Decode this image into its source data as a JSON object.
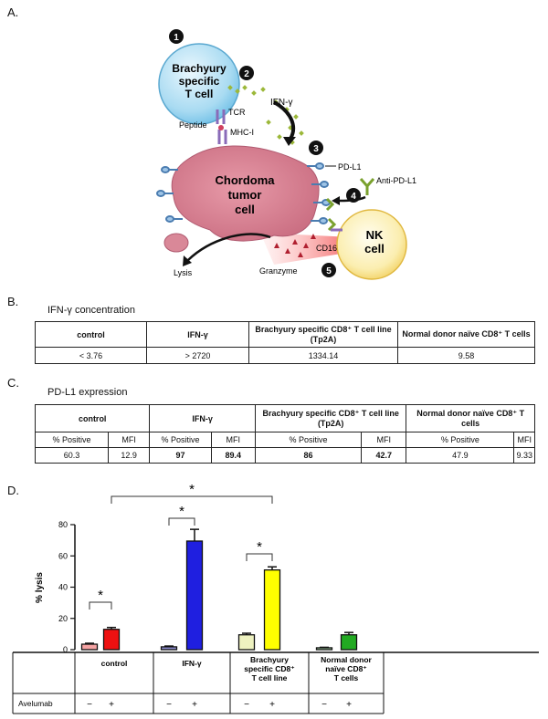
{
  "panels": {
    "a": "A.",
    "b": "B.",
    "c": "C.",
    "d": "D."
  },
  "diagram": {
    "steps": [
      "1",
      "2",
      "3",
      "4",
      "5"
    ],
    "tcell_label": [
      "Brachyury",
      "specific",
      "T cell"
    ],
    "tumor_label": [
      "Chordoma",
      "tumor",
      "cell"
    ],
    "nk_label": [
      "NK",
      "cell"
    ],
    "labels": {
      "tcr": "TCR",
      "peptide": "Peptide",
      "mhc": "MHC-I",
      "ifn": "IFN-γ",
      "pdl1": "PD-L1",
      "anti_pdl1": "Anti-PD-L1",
      "cd16": "CD16",
      "granzyme": "Granzyme",
      "lysis": "Lysis"
    }
  },
  "table_b": {
    "title": "IFN-γ concentration",
    "headers": [
      "control",
      "IFN-γ",
      "Brachyury specific CD8⁺ T cell line (Tp2A)",
      "Normal donor  naïve CD8⁺ T cells"
    ],
    "values": [
      "< 3.76",
      "> 2720",
      "1334.14",
      "9.58"
    ]
  },
  "table_c": {
    "title": "PD-L1 expression",
    "headers": [
      "control",
      "IFN-γ",
      "Brachyury specific CD8⁺ T cell line (Tp2A)",
      "Normal donor  naïve CD8⁺ T cells"
    ],
    "subheaders": [
      "% Positive",
      "MFI",
      "% Positive",
      "MFI",
      "% Positive",
      "MFI",
      "% Positive",
      "MFI"
    ],
    "values": [
      "60.3",
      "12.9",
      "97",
      "89.4",
      "86",
      "42.7",
      "47.9",
      "9.33"
    ]
  },
  "chart_data": {
    "type": "bar",
    "title": "",
    "ylabel": "% lysis",
    "ylim": [
      0,
      80
    ],
    "yticks": [
      0,
      20,
      40,
      60,
      80
    ],
    "groups": [
      "control",
      "IFN-γ",
      "Brachyury specific CD8⁺ T cell line",
      "Normal donor naïve CD8⁺ T cells"
    ],
    "group_label_lines": [
      [
        "control"
      ],
      [
        "IFN-γ"
      ],
      [
        "Brachyury",
        "specific CD8⁺",
        "T cell line"
      ],
      [
        "Normal donor",
        "naïve CD8⁺",
        "T cells"
      ]
    ],
    "row_label": "Avelumab",
    "avelumab": [
      "−",
      "+",
      "−",
      "+",
      "−",
      "+",
      "−",
      "+"
    ],
    "values": [
      3.5,
      13,
      1.8,
      69.5,
      9.5,
      51,
      1.2,
      9.5
    ],
    "errors": [
      0.6,
      1.2,
      0.5,
      7.5,
      1,
      2,
      0.3,
      1.5
    ],
    "colors": [
      "#f5a3a3",
      "#ee1111",
      "#8a8acc",
      "#1f1fe0",
      "#eef2c0",
      "#ffff00",
      "#a7d6a7",
      "#22aa22"
    ],
    "significance": [
      {
        "from": 0,
        "to": 1,
        "label": "*"
      },
      {
        "from": 2,
        "to": 3,
        "label": "*"
      },
      {
        "from": 4,
        "to": 5,
        "label": "*"
      },
      {
        "from": 1,
        "to": 5,
        "label": "*"
      }
    ]
  }
}
